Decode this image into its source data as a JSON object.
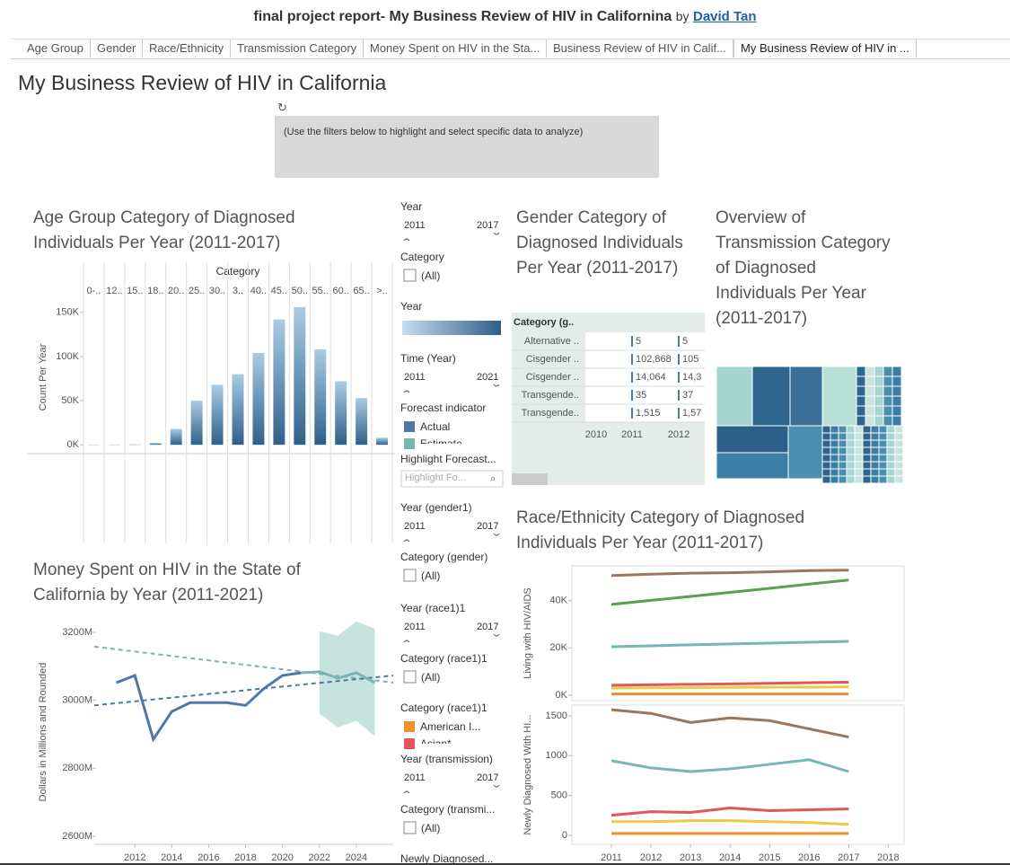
{
  "header": {
    "title": "final project report- My Business Review of HIV in Californina",
    "by": "by",
    "author": "David Tan"
  },
  "tabs": [
    "Age Group",
    "Gender",
    "Race/Ethnicity",
    "Transmission Category",
    "Money Spent on HIV in the Sta...",
    "Business Review of HIV in Calif...",
    "My Business Review of HIV in ..."
  ],
  "active_tab": 6,
  "dashboard_title": "My Business Review of HIV in California",
  "note": "(Use the filters below to highlight and select specific data to analyze)",
  "filters": [
    {
      "title": "Year",
      "range": [
        "2011",
        "2017"
      ]
    },
    {
      "title": "Category",
      "options": [
        "(All)"
      ]
    },
    {
      "title": "Year",
      "gradient": [
        "#c6dbef",
        "#2f5f8a"
      ]
    },
    {
      "title": "Time (Year)",
      "range": [
        "2011",
        "2021"
      ]
    },
    {
      "title": "Forecast indicator",
      "legend": [
        {
          "label": "Actual",
          "color": "#4e79a7"
        },
        {
          "label": "Estimate",
          "color": "#76b7b2"
        }
      ]
    },
    {
      "title": "Highlight Forecast...",
      "placeholder": "Highlight Fo..."
    },
    {
      "title": "Year (gender1)",
      "range": [
        "2011",
        "2017"
      ]
    },
    {
      "title": "Category (gender)",
      "options": [
        "(All)"
      ]
    },
    {
      "title": "Year (race1)1",
      "range": [
        "2011",
        "2017"
      ]
    },
    {
      "title": "Category (race1)1",
      "options": [
        "(All)"
      ]
    },
    {
      "title": "Category (race1)1",
      "legend": [
        {
          "label": "American I...",
          "color": "#f28e2b"
        },
        {
          "label": "Asian*",
          "color": "#e15759"
        }
      ]
    },
    {
      "title": "Year (transmission)",
      "range": [
        "2011",
        "2017"
      ]
    },
    {
      "title": "Category (transmi...",
      "options": [
        "(All)"
      ]
    },
    {
      "title": "Newly Diagnosed..."
    }
  ],
  "gender_table": {
    "title": "Gender Category of Diagnosed Individuals Per Year (2011-2017)",
    "header": "Category (g..",
    "columns": [
      "2010",
      "2011",
      "2012"
    ],
    "rows": [
      [
        "Alternative ..",
        "5",
        "5"
      ],
      [
        "Cisgender ..",
        "102,868",
        "105"
      ],
      [
        "Cisgender ..",
        "14,064",
        "14,3"
      ],
      [
        "Transgende..",
        "35",
        "37"
      ],
      [
        "Transgende..",
        "1,515",
        "1,57"
      ]
    ]
  },
  "treemap": {
    "title": "Overview of Transmission Category of Diagnosed Individuals Per Year (2011-2017)"
  },
  "chart_data": [
    {
      "type": "bar",
      "title": "Age Group Category of Diagnosed Individuals Per Year (2011-2017)",
      "header": "Category",
      "categories": [
        "0-..",
        "12..",
        "15..",
        "18..",
        "20..",
        "25..",
        "30..",
        "3..",
        "40..",
        "45..",
        "50..",
        "55..",
        "60..",
        "65..",
        ">.."
      ],
      "values": [
        200,
        300,
        500,
        2000,
        18000,
        50000,
        68000,
        80000,
        104000,
        142000,
        156000,
        108000,
        72000,
        53000,
        8000
      ],
      "ylabel": "Count Per Year",
      "ylim": [
        -10000,
        163000
      ],
      "yticks": [
        {
          "value": 0,
          "label": "0K"
        },
        {
          "value": 50000,
          "label": "50K"
        },
        {
          "value": 100000,
          "label": "100K"
        },
        {
          "value": 150000,
          "label": "150K"
        }
      ],
      "color": "#2f5f8a",
      "color_light": "#a9cce3"
    },
    {
      "type": "line",
      "title": "Money Spent on HIV in the State of California by Year (2011-2021)",
      "ylabel": "Dollars in Millions and Rounded",
      "xlim": [
        2009.8,
        2026
      ],
      "ylim": [
        2576,
        3237
      ],
      "xticks": [
        2012,
        2014,
        2016,
        2018,
        2020,
        2022,
        2024
      ],
      "yticks": [
        {
          "value": 2600,
          "label": "2600M"
        },
        {
          "value": 2800,
          "label": "2800M"
        },
        {
          "value": 3000,
          "label": "3000M"
        },
        {
          "value": 3200,
          "label": "3200M"
        }
      ],
      "band": {
        "x": [
          2022,
          2023,
          2024,
          2025
        ],
        "upper": [
          3203,
          3190,
          3232,
          3211
        ],
        "lower": [
          2960,
          2920,
          2940,
          2894
        ],
        "color": "#b9dcd6"
      },
      "series": [
        {
          "x": [
            2009.8,
            2026
          ],
          "values": [
            3158,
            3052
          ],
          "color": "#76b7b2",
          "dashed": true
        },
        {
          "x": [
            2009.8,
            2026
          ],
          "values": [
            2985,
            3073
          ],
          "color": "#4e79a7",
          "dashed": true
        },
        {
          "x": [
            2011,
            2012,
            2013,
            2014,
            2015,
            2016,
            2017,
            2018,
            2019,
            2020,
            2021
          ],
          "values": [
            3052,
            3073,
            2885,
            2967,
            2993,
            2993,
            2993,
            2985,
            3035,
            3073,
            3081
          ],
          "color": "#4e79a7"
        },
        {
          "x": [
            2021,
            2022,
            2023,
            2024,
            2025
          ],
          "values": [
            3081,
            3084,
            3065,
            3081,
            3052
          ],
          "color": "#76b7b2"
        }
      ]
    },
    {
      "type": "panes",
      "title": "Race/Ethnicity Category of Diagnosed Individuals Per Year (2011-2017)",
      "x": [
        2011,
        2012,
        2013,
        2014,
        2015,
        2016,
        2017
      ],
      "xlim": [
        2010,
        2018.4
      ],
      "xticks": [
        2011,
        2012,
        2013,
        2014,
        2015,
        2016,
        2017,
        2018
      ],
      "panes": [
        {
          "ylabel": "Living with HIV/AIDS",
          "ylim": [
            -2300,
            54700
          ],
          "yticks": [
            {
              "value": 0,
              "label": "0K"
            },
            {
              "value": 20000,
              "label": "20K"
            },
            {
              "value": 40000,
              "label": "40K"
            }
          ],
          "series": [
            {
              "color": "#9c755f",
              "values": [
                50600,
                51200,
                51600,
                51800,
                52200,
                52700,
                52900
              ]
            },
            {
              "color": "#59a14f",
              "values": [
                38400,
                40100,
                41800,
                43500,
                45200,
                47000,
                48700
              ]
            },
            {
              "color": "#76b7b2",
              "values": [
                20500,
                20900,
                21300,
                21700,
                22000,
                22400,
                22800
              ]
            },
            {
              "color": "#e15759",
              "values": [
                4200,
                4400,
                4600,
                4800,
                5000,
                5300,
                5500
              ]
            },
            {
              "color": "#edc948",
              "values": [
                3000,
                3100,
                3200,
                3300,
                3400,
                3400,
                3500
              ]
            },
            {
              "color": "#f28e2b",
              "values": [
                500,
                500,
                500,
                500,
                500,
                500,
                500
              ]
            }
          ]
        },
        {
          "ylabel": "Newly Diagnosed With HI...",
          "ylim": [
            -114,
            1635
          ],
          "yticks": [
            0,
            500,
            1000,
            1500
          ],
          "series": [
            {
              "color": "#9c755f",
              "values": [
                1577,
                1531,
                1417,
                1474,
                1440,
                1337,
                1234
              ]
            },
            {
              "color": "#76b7b2",
              "values": [
                937,
                846,
                800,
                834,
                891,
                949,
                800
              ]
            },
            {
              "color": "#e15759",
              "values": [
                251,
                297,
                286,
                343,
                309,
                320,
                331
              ]
            },
            {
              "color": "#edc948",
              "values": [
                171,
                171,
                183,
                183,
                171,
                160,
                137
              ]
            },
            {
              "color": "#f28e2b",
              "values": [
                23,
                23,
                23,
                23,
                23,
                23,
                23
              ]
            }
          ]
        }
      ]
    }
  ]
}
